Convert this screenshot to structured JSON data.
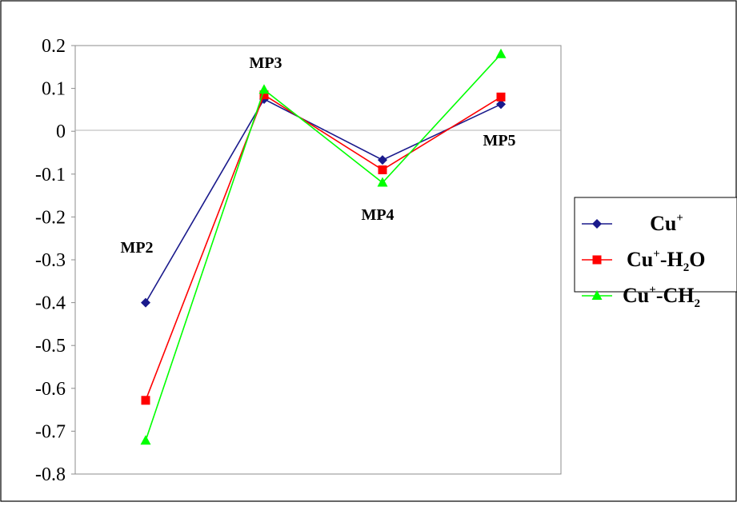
{
  "chart_data": {
    "type": "line",
    "title": "",
    "xlabel": "",
    "ylabel": "",
    "categories": [
      "MP2",
      "MP3",
      "MP4",
      "MP5"
    ],
    "ylim": [
      -0.8,
      0.2
    ],
    "yticks": [
      "0.2",
      "0.1",
      "0",
      "-0.1",
      "-0.2",
      "-0.3",
      "-0.4",
      "-0.5",
      "-0.6",
      "-0.7",
      "-0.8"
    ],
    "grid": "zero-line-only",
    "legend_position": "right",
    "series": [
      {
        "name": "Cu+",
        "legend": {
          "base": "Cu",
          "sup": "+"
        },
        "color": "#1a1a8c",
        "marker": "diamond",
        "values": [
          -0.4,
          0.075,
          -0.067,
          0.063
        ]
      },
      {
        "name": "Cu+-H2O",
        "legend": {
          "base": "Cu",
          "sup": "+",
          "mid": "-H",
          "sub": "2",
          "tail": "O"
        },
        "color": "#ff0000",
        "marker": "square",
        "values": [
          -0.628,
          0.085,
          -0.09,
          0.08
        ]
      },
      {
        "name": "Cu+-CH2",
        "legend": {
          "base": "Cu",
          "sup": "+",
          "mid": "-CH",
          "sub": "2",
          "tail": ""
        },
        "color": "#00ff00",
        "marker": "triangle",
        "values": [
          -0.722,
          0.097,
          -0.12,
          0.18
        ]
      }
    ]
  }
}
